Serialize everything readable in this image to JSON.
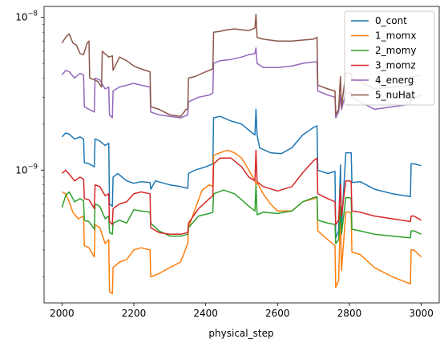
{
  "chart_data": {
    "type": "line",
    "title": "",
    "xlabel": "physical_step",
    "ylabel": "",
    "yscale": "log",
    "xlim": [
      1950,
      3050
    ],
    "ylim": [
      1.35e-10,
      1.18e-08
    ],
    "xticks": [
      2000,
      2200,
      2400,
      2600,
      2800,
      3000
    ],
    "xtick_labels": [
      "2000",
      "2200",
      "2400",
      "2600",
      "2800",
      "3000"
    ],
    "yticks": [
      1e-09,
      1e-08
    ],
    "ytick_labels": [
      {
        "base": "10",
        "exp": "−9"
      },
      {
        "base": "10",
        "exp": "−8"
      }
    ],
    "grid": false,
    "legend": "top-right",
    "series": [
      {
        "name": "0_cont",
        "color": "#1f77b4",
        "x": [
          2000,
          2010,
          2020,
          2035,
          2050,
          2060,
          2062,
          2075,
          2090,
          2092,
          2105,
          2120,
          2130,
          2132,
          2140,
          2142,
          2155,
          2180,
          2200,
          2220,
          2245,
          2247,
          2260,
          2300,
          2330,
          2350,
          2352,
          2370,
          2400,
          2420,
          2422,
          2440,
          2470,
          2500,
          2530,
          2537,
          2540,
          2543,
          2550,
          2580,
          2610,
          2640,
          2670,
          2700,
          2710,
          2712,
          2740,
          2760,
          2762,
          2770,
          2775,
          2778,
          2790,
          2800,
          2805,
          2807,
          2830,
          2870,
          2920,
          2970,
          2972,
          2980,
          3000
        ],
        "y": [
          1.65e-09,
          1.75e-09,
          1.72e-09,
          1.6e-09,
          1.65e-09,
          1.6e-09,
          1.12e-09,
          1.1e-09,
          1.05e-09,
          1.6e-09,
          1.55e-09,
          1.45e-09,
          1.5e-09,
          6e-10,
          5.8e-10,
          9e-10,
          9.5e-10,
          8.5e-10,
          8.2e-10,
          8.4e-10,
          8.3e-10,
          7.5e-10,
          8.5e-10,
          8e-10,
          7.8e-10,
          7.6e-10,
          9.5e-10,
          1e-09,
          1.05e-09,
          1.1e-09,
          2.2e-09,
          2.25e-09,
          2.1e-09,
          2e-09,
          1.75e-09,
          1.7e-09,
          2.5e-09,
          1.7e-09,
          1.4e-09,
          1.3e-09,
          1.28e-09,
          1.4e-09,
          1.7e-09,
          1.9e-09,
          1.95e-09,
          1e-09,
          9.5e-10,
          9.8e-10,
          3.6e-10,
          4e-10,
          1.08e-09,
          4.2e-10,
          1.3e-09,
          1.3e-09,
          1.3e-09,
          8.3e-10,
          8.4e-10,
          7.5e-10,
          7e-10,
          6.7e-10,
          1.1e-09,
          1.1e-09,
          1.07e-09
        ]
      },
      {
        "name": "1_momx",
        "color": "#ff7f0e",
        "x": [
          2000,
          2010,
          2020,
          2030,
          2045,
          2060,
          2062,
          2075,
          2090,
          2092,
          2105,
          2120,
          2130,
          2132,
          2140,
          2142,
          2160,
          2180,
          2200,
          2220,
          2245,
          2247,
          2270,
          2300,
          2330,
          2350,
          2352,
          2370,
          2390,
          2410,
          2420,
          2422,
          2440,
          2460,
          2480,
          2500,
          2520,
          2537,
          2540,
          2543,
          2560,
          2580,
          2600,
          2640,
          2670,
          2700,
          2710,
          2712,
          2740,
          2760,
          2762,
          2770,
          2775,
          2778,
          2790,
          2800,
          2805,
          2807,
          2830,
          2870,
          2920,
          2970,
          2972,
          2980,
          3000
        ],
        "y": [
          7.2e-10,
          7e-10,
          6.2e-10,
          5.3e-10,
          4.8e-10,
          5e-10,
          3.2e-10,
          3.1e-10,
          2.7e-10,
          4.4e-10,
          4.2e-10,
          3.3e-10,
          3.5e-10,
          1.6e-10,
          1.55e-10,
          2.3e-10,
          2.5e-10,
          2.6e-10,
          3e-10,
          3.1e-10,
          3e-10,
          2e-10,
          2.1e-10,
          2.3e-10,
          2.5e-10,
          3.3e-10,
          4.2e-10,
          5.5e-10,
          7.4e-10,
          8e-10,
          7.8e-10,
          1.25e-09,
          1.3e-09,
          1.35e-09,
          1.3e-09,
          1.2e-09,
          1e-09,
          8.5e-10,
          8e-10,
          8.3e-10,
          7e-10,
          6e-10,
          5.4e-10,
          5.4e-10,
          6.2e-10,
          6.5e-10,
          6.6e-10,
          4e-10,
          3.5e-10,
          3.2e-10,
          1.7e-10,
          1.9e-10,
          5.1e-10,
          2.2e-10,
          5.3e-10,
          5.3e-10,
          5.2e-10,
          2.9e-10,
          2.8e-10,
          2.3e-10,
          2e-10,
          1.8e-10,
          3e-10,
          3e-10,
          2.7e-10
        ]
      },
      {
        "name": "2_momy",
        "color": "#2ca02c",
        "x": [
          2000,
          2010,
          2020,
          2035,
          2050,
          2060,
          2062,
          2075,
          2090,
          2092,
          2105,
          2120,
          2130,
          2132,
          2140,
          2142,
          2160,
          2180,
          2200,
          2220,
          2245,
          2247,
          2270,
          2300,
          2330,
          2350,
          2352,
          2380,
          2410,
          2420,
          2422,
          2450,
          2480,
          2500,
          2520,
          2537,
          2540,
          2543,
          2560,
          2600,
          2640,
          2670,
          2700,
          2710,
          2712,
          2740,
          2760,
          2762,
          2770,
          2775,
          2778,
          2790,
          2800,
          2805,
          2807,
          2830,
          2870,
          2920,
          2970,
          2972,
          2980,
          3000
        ],
        "y": [
          5.7e-10,
          6.8e-10,
          7.2e-10,
          6.2e-10,
          6.5e-10,
          6.3e-10,
          4.7e-10,
          4.6e-10,
          4.1e-10,
          6e-10,
          5.8e-10,
          4.8e-10,
          5e-10,
          3.9e-10,
          3.8e-10,
          4.5e-10,
          4.7e-10,
          4.5e-10,
          5.5e-10,
          5.4e-10,
          5.3e-10,
          4.5e-10,
          4e-10,
          3.7e-10,
          3.7e-10,
          3.8e-10,
          4.2e-10,
          5e-10,
          5.2e-10,
          5.3e-10,
          7e-10,
          7.4e-10,
          7e-10,
          6.4e-10,
          5.8e-10,
          5.4e-10,
          8e-10,
          5.1e-10,
          5.3e-10,
          5.2e-10,
          5.4e-10,
          6.2e-10,
          6.6e-10,
          6.7e-10,
          4.7e-10,
          4.5e-10,
          4.4e-10,
          3.3e-10,
          3.5e-10,
          5.8e-10,
          3.8e-10,
          6.6e-10,
          6.6e-10,
          6.5e-10,
          4.1e-10,
          4e-10,
          3.8e-10,
          3.7e-10,
          3.6e-10,
          4e-10,
          4e-10,
          3.8e-10
        ]
      },
      {
        "name": "3_momz",
        "color": "#d62728",
        "x": [
          2000,
          2010,
          2020,
          2035,
          2050,
          2060,
          2062,
          2075,
          2090,
          2092,
          2105,
          2120,
          2130,
          2132,
          2140,
          2142,
          2160,
          2180,
          2200,
          2220,
          2245,
          2247,
          2270,
          2300,
          2330,
          2350,
          2352,
          2380,
          2410,
          2420,
          2422,
          2440,
          2470,
          2500,
          2520,
          2537,
          2540,
          2543,
          2560,
          2600,
          2640,
          2670,
          2700,
          2710,
          2712,
          2740,
          2760,
          2762,
          2770,
          2775,
          2778,
          2790,
          2800,
          2805,
          2807,
          2830,
          2870,
          2920,
          2970,
          2972,
          2980,
          3000
        ],
        "y": [
          9.5e-10,
          1e-09,
          9.4e-10,
          8.5e-10,
          9e-10,
          8.7e-10,
          6.5e-10,
          6.4e-10,
          5.6e-10,
          8e-10,
          7.8e-10,
          6.8e-10,
          7e-10,
          4.6e-10,
          4.4e-10,
          5.6e-10,
          6e-10,
          6.2e-10,
          7e-10,
          7.2e-10,
          7e-10,
          4.2e-10,
          3.9e-10,
          3.8e-10,
          3.8e-10,
          3.9e-10,
          4.5e-10,
          5.6e-10,
          6.5e-10,
          6.8e-10,
          1.1e-09,
          1.2e-09,
          1.2e-09,
          1.05e-09,
          9e-10,
          8.5e-10,
          1.35e-09,
          8.4e-10,
          7.8e-10,
          7.3e-10,
          7.8e-10,
          9.6e-10,
          1.15e-09,
          1.2e-09,
          7e-10,
          6.5e-10,
          6.2e-10,
          4.4e-10,
          4.7e-10,
          8e-10,
          5e-10,
          8.5e-10,
          8.5e-10,
          8.4e-10,
          5.4e-10,
          5.3e-10,
          5e-10,
          4.8e-10,
          4.6e-10,
          5e-10,
          5e-10,
          4.7e-10
        ]
      },
      {
        "name": "4_energ",
        "color": "#9467bd",
        "x": [
          2000,
          2010,
          2020,
          2035,
          2050,
          2060,
          2062,
          2075,
          2090,
          2092,
          2105,
          2120,
          2130,
          2132,
          2140,
          2142,
          2160,
          2180,
          2200,
          2220,
          2245,
          2247,
          2270,
          2300,
          2330,
          2350,
          2352,
          2380,
          2410,
          2420,
          2422,
          2440,
          2470,
          2500,
          2520,
          2537,
          2540,
          2543,
          2560,
          2600,
          2640,
          2670,
          2700,
          2710,
          2712,
          2740,
          2760,
          2762,
          2770,
          2775,
          2778,
          2790,
          2800,
          2805,
          2807,
          2830,
          2870,
          2920,
          2970,
          2972,
          2980,
          3000
        ],
        "y": [
          4.2e-09,
          4.5e-09,
          4.4e-09,
          4e-09,
          4.3e-09,
          4.2e-09,
          2.6e-09,
          2.5e-09,
          2.4e-09,
          4e-09,
          3.9e-09,
          3.4e-09,
          3.5e-09,
          2.3e-09,
          2.2e-09,
          3.3e-09,
          3.5e-09,
          3.6e-09,
          3.7e-09,
          3.6e-09,
          3.5e-09,
          2.4e-09,
          2.3e-09,
          2.25e-09,
          2.2e-09,
          2.3e-09,
          2.8e-09,
          3e-09,
          3.1e-09,
          3.2e-09,
          5e-09,
          5.2e-09,
          5.3e-09,
          5.5e-09,
          5.7e-09,
          5.8e-09,
          6.3e-09,
          5e-09,
          4.7e-09,
          4.7e-09,
          4.8e-09,
          5e-09,
          5.1e-09,
          5.1e-09,
          3.3e-09,
          3.1e-09,
          3e-09,
          2.2e-09,
          2.4e-09,
          3.1e-09,
          2.5e-09,
          3.2e-09,
          3.2e-09,
          3.2e-09,
          3e-09,
          2.8e-09,
          2.5e-09,
          2.6e-09,
          2.7e-09,
          3e-09,
          3e-09,
          3.1e-09
        ]
      },
      {
        "name": "5_nuHat",
        "color": "#8c564b",
        "x": [
          2000,
          2010,
          2020,
          2030,
          2040,
          2050,
          2060,
          2070,
          2075,
          2077,
          2090,
          2100,
          2110,
          2112,
          2130,
          2140,
          2142,
          2160,
          2180,
          2200,
          2220,
          2245,
          2247,
          2270,
          2300,
          2330,
          2340,
          2345,
          2350,
          2352,
          2370,
          2400,
          2420,
          2422,
          2440,
          2460,
          2480,
          2500,
          2520,
          2537,
          2540,
          2543,
          2560,
          2600,
          2640,
          2670,
          2700,
          2710,
          2712,
          2740,
          2760,
          2762,
          2770,
          2775,
          2778,
          2790,
          2800,
          2805,
          2807,
          2830,
          2870,
          2920,
          2970,
          2972,
          2980,
          3000
        ],
        "y": [
          6.8e-09,
          7.4e-09,
          7.8e-09,
          6.8e-09,
          6.6e-09,
          5.8e-09,
          5.7e-09,
          6.8e-09,
          7e-09,
          4e-09,
          3.9e-09,
          3.8e-09,
          3.5e-09,
          6e-09,
          5.5e-09,
          5.6e-09,
          4.5e-09,
          5.5e-09,
          5.2e-09,
          4.8e-09,
          4.6e-09,
          4.4e-09,
          2.6e-09,
          2.5e-09,
          2.3e-09,
          2.25e-09,
          2.4e-09,
          2.5e-09,
          2.5e-09,
          4e-09,
          4.1e-09,
          4.4e-09,
          4.6e-09,
          8e-09,
          8.1e-09,
          8.3e-09,
          8.4e-09,
          8.3e-09,
          8.2e-09,
          8.5e-09,
          1.05e-08,
          7.4e-09,
          7.2e-09,
          7e-09,
          7e-09,
          7.1e-09,
          7.2e-09,
          7.4e-09,
          3.6e-09,
          3.4e-09,
          3.3e-09,
          2.3e-09,
          2.5e-09,
          4.1e-09,
          2.6e-09,
          4.3e-09,
          4.3e-09,
          4.3e-09,
          4e-09,
          3.8e-09,
          3.4e-09,
          3.5e-09,
          3.6e-09,
          4.1e-09,
          4.1e-09,
          4.2e-09
        ]
      }
    ]
  }
}
